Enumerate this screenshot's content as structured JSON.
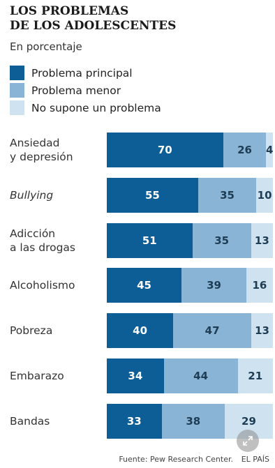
{
  "header": {
    "title_line1": "LOS PROBLEMAS",
    "title_line2": "DE LOS ADOLESCENTES",
    "subtitle": "En porcentaje"
  },
  "legend": [
    {
      "label": "Problema principal",
      "color": "#0d5e96"
    },
    {
      "label": "Problema menor",
      "color": "#8ab4d5"
    },
    {
      "label": "No supone un problema",
      "color": "#cfe2ef"
    }
  ],
  "footer": {
    "source": "Fuente: Pew Research Center.",
    "brand": "EL PAÍS"
  },
  "icons": {
    "expand": "expand-icon"
  },
  "chart_data": {
    "type": "bar",
    "orientation": "horizontal",
    "stacked": true,
    "title": "LOS PROBLEMAS DE LOS ADOLESCENTES",
    "subtitle": "En porcentaje",
    "categories": [
      {
        "label": "Ansiedad\ny depresión",
        "italic": false
      },
      {
        "label": "Bullying",
        "italic": true
      },
      {
        "label": "Adicción\na las drogas",
        "italic": false
      },
      {
        "label": "Alcoholismo",
        "italic": false
      },
      {
        "label": "Pobreza",
        "italic": false
      },
      {
        "label": "Embarazo",
        "italic": false
      },
      {
        "label": "Bandas",
        "italic": false
      }
    ],
    "series": [
      {
        "name": "Problema principal",
        "values": [
          70,
          55,
          51,
          45,
          40,
          34,
          33
        ]
      },
      {
        "name": "Problema menor",
        "values": [
          26,
          35,
          35,
          39,
          47,
          44,
          38
        ]
      },
      {
        "name": "No supone un problema",
        "values": [
          4,
          10,
          13,
          16,
          13,
          21,
          29
        ]
      }
    ],
    "xlim": [
      0,
      100
    ],
    "legend_position": "top-left",
    "grid": false
  }
}
